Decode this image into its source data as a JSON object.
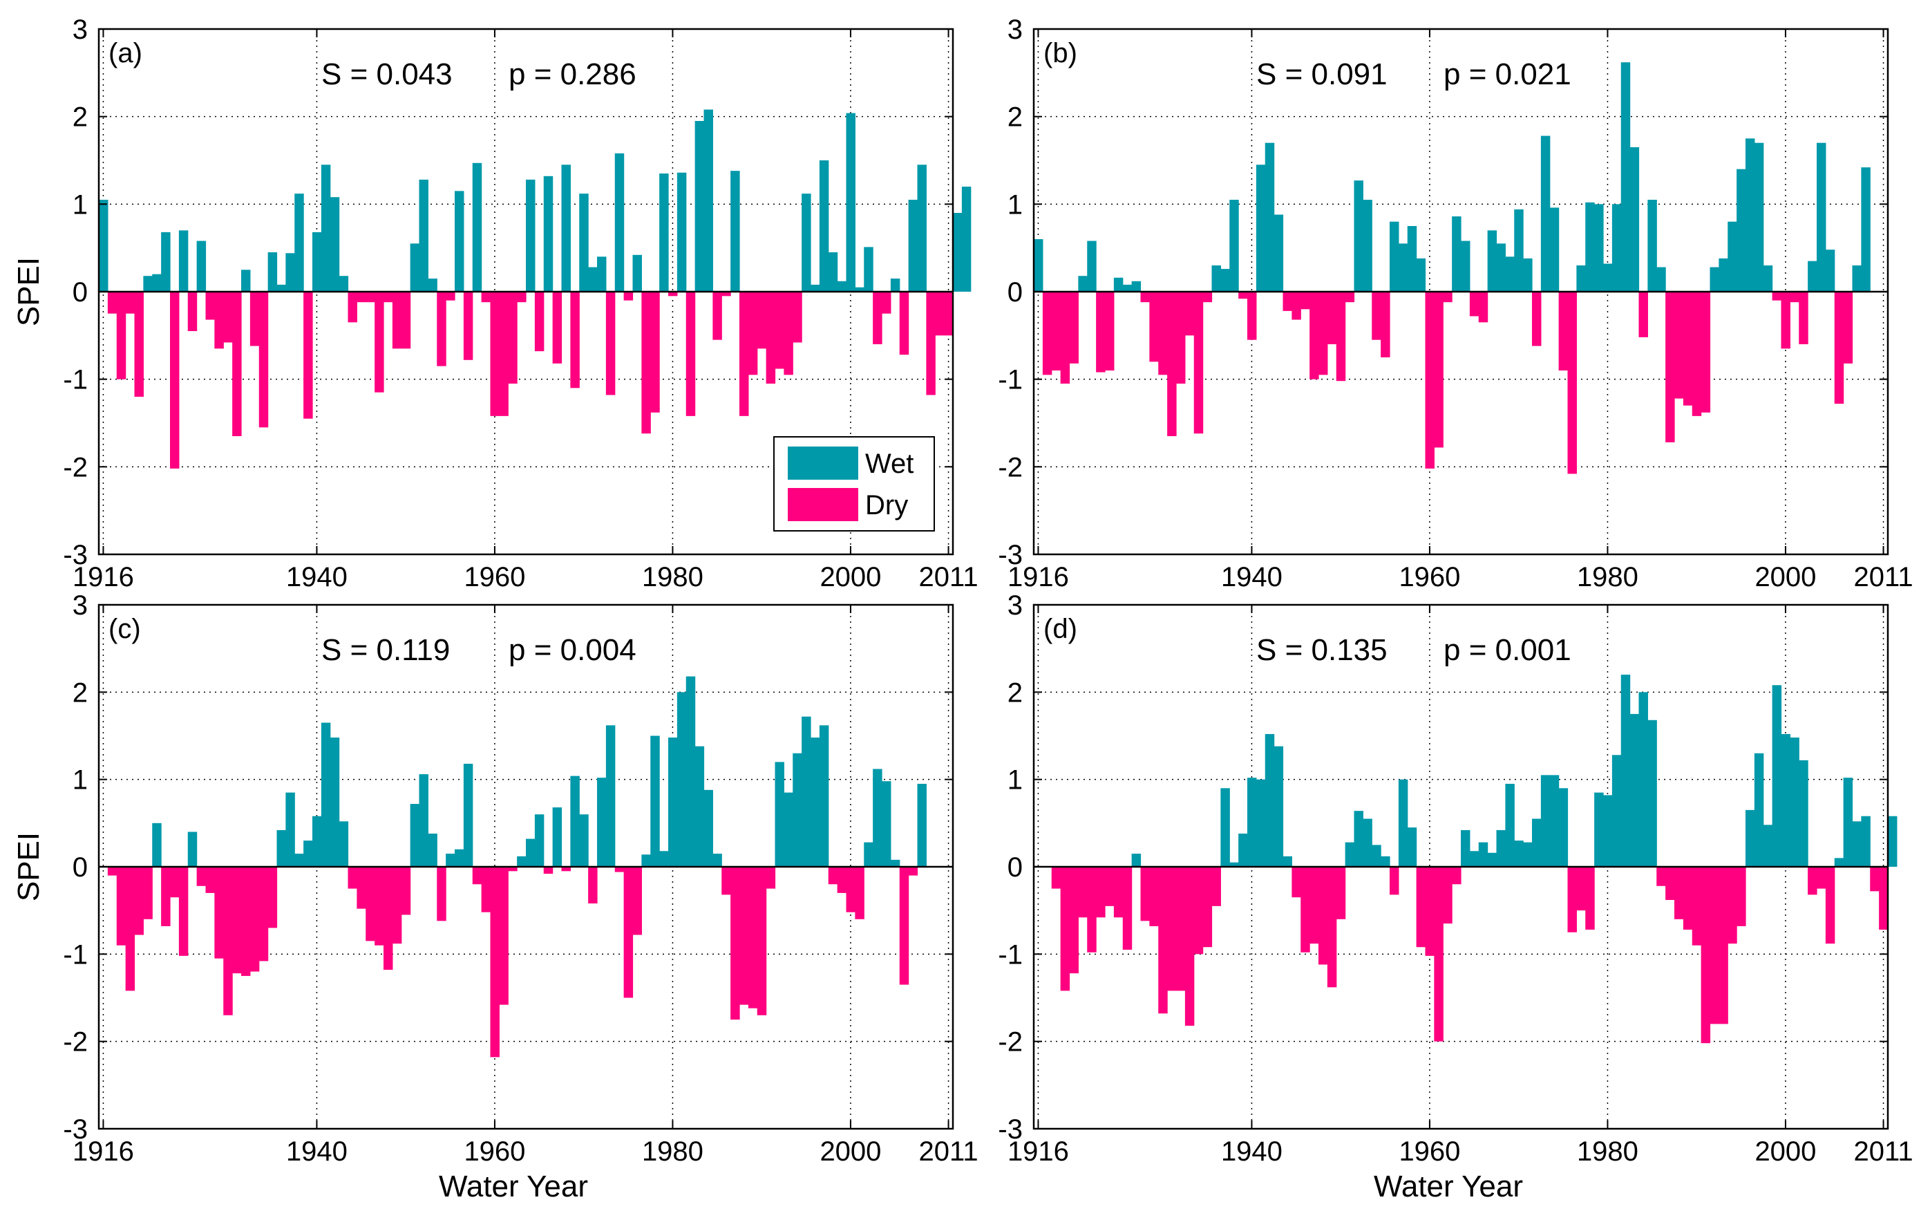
{
  "figure": {
    "colors": {
      "wet": "#0099aa",
      "dry": "#ff0080"
    },
    "legend": {
      "wet_label": "Wet",
      "dry_label": "Dry",
      "placement": "inside panel (a), lower right"
    }
  },
  "chart_data": [
    {
      "type": "bar",
      "panel": "(a)",
      "stat_s": "S = 0.043",
      "stat_p": "p = 0.286",
      "xlabel": "Water Year",
      "ylabel": "SPEI",
      "xlim": [
        1915.5,
        2011.5
      ],
      "ylim": [
        -3,
        3
      ],
      "xticks": [
        1916,
        1940,
        1960,
        1980,
        2000,
        2011
      ],
      "yticks": [
        -3,
        -2,
        -1,
        0,
        1,
        2,
        3
      ],
      "grid": "dotted",
      "x_start": 1916,
      "values": [
        1.05,
        -0.25,
        -1.0,
        -0.25,
        -1.2,
        0.18,
        0.2,
        0.68,
        -2.02,
        0.7,
        -0.45,
        0.58,
        -0.32,
        -0.65,
        -0.58,
        -1.65,
        0.25,
        -0.62,
        -1.55,
        0.45,
        0.08,
        0.44,
        1.12,
        -1.45,
        0.68,
        1.45,
        1.08,
        0.18,
        -0.35,
        -0.12,
        -0.12,
        -1.15,
        -0.12,
        -0.65,
        -0.65,
        0.55,
        1.28,
        0.15,
        -0.85,
        -0.1,
        1.15,
        -0.78,
        1.47,
        -0.12,
        -1.42,
        -1.42,
        -1.05,
        -0.12,
        1.28,
        -0.68,
        1.32,
        -0.82,
        1.45,
        -1.1,
        1.12,
        0.28,
        0.4,
        -1.18,
        1.58,
        -0.1,
        0.42,
        -1.62,
        -1.38,
        1.35,
        -0.05,
        1.36,
        -1.42,
        1.95,
        2.08,
        -0.55,
        -0.05,
        1.38,
        -1.42,
        -0.95,
        -0.65,
        -1.05,
        -0.88,
        -0.95,
        -0.58,
        1.12,
        0.08,
        1.5,
        0.45,
        0.12,
        2.04,
        0.05,
        0.51,
        -0.6,
        -0.25,
        0.15,
        -0.72,
        1.05,
        1.45,
        -1.18,
        -0.5,
        -0.5,
        0.9,
        1.2
      ]
    },
    {
      "type": "bar",
      "panel": "(b)",
      "stat_s": "S = 0.091",
      "stat_p": "p = 0.021",
      "xlabel": "Water Year",
      "ylabel": "",
      "xlim": [
        1915.5,
        2011.5
      ],
      "ylim": [
        -3,
        3
      ],
      "xticks": [
        1916,
        1940,
        1960,
        1980,
        2000,
        2011
      ],
      "yticks": [
        -3,
        -2,
        -1,
        0,
        1,
        2,
        3
      ],
      "grid": "dotted",
      "x_start": 1916,
      "values": [
        0.6,
        -0.95,
        -0.9,
        -1.05,
        -0.82,
        0.18,
        0.58,
        -0.92,
        -0.9,
        0.16,
        0.08,
        0.12,
        -0.12,
        -0.8,
        -0.95,
        -1.65,
        -1.05,
        -0.5,
        -1.62,
        -0.12,
        0.3,
        0.26,
        1.05,
        -0.08,
        -0.55,
        1.45,
        1.7,
        0.88,
        -0.22,
        -0.32,
        -0.2,
        -1.0,
        -0.95,
        -0.6,
        -1.02,
        -0.12,
        1.27,
        1.05,
        -0.55,
        -0.75,
        0.8,
        0.55,
        0.75,
        0.38,
        -2.02,
        -1.78,
        -0.12,
        0.86,
        0.58,
        -0.28,
        -0.35,
        0.7,
        0.55,
        0.4,
        0.94,
        0.38,
        -0.62,
        1.78,
        0.96,
        -0.9,
        -2.08,
        0.3,
        1.02,
        1.0,
        0.32,
        1.0,
        2.62,
        1.65,
        -0.52,
        1.05,
        0.28,
        -1.72,
        -1.22,
        -1.3,
        -1.42,
        -1.38,
        0.28,
        0.38,
        0.8,
        1.4,
        1.75,
        1.7,
        0.3,
        -0.1,
        -0.65,
        -0.12,
        -0.6,
        0.35,
        1.7,
        0.48,
        -1.28,
        -0.82,
        0.3,
        1.42
      ]
    },
    {
      "type": "bar",
      "panel": "(c)",
      "stat_s": "S = 0.119",
      "stat_p": "p = 0.004",
      "xlabel": "Water Year",
      "ylabel": "SPEI",
      "xlim": [
        1915.5,
        2011.5
      ],
      "ylim": [
        -3,
        3
      ],
      "xticks": [
        1916,
        1940,
        1960,
        1980,
        2000,
        2011
      ],
      "yticks": [
        -3,
        -2,
        -1,
        0,
        1,
        2,
        3
      ],
      "grid": "dotted",
      "x_start": 1916,
      "values": [
        0.0,
        -0.1,
        -0.9,
        -1.42,
        -0.78,
        -0.6,
        0.5,
        -0.68,
        -0.35,
        -1.02,
        0.4,
        -0.22,
        -0.3,
        -1.05,
        -1.7,
        -1.22,
        -1.25,
        -1.2,
        -1.08,
        -0.7,
        0.42,
        0.85,
        0.15,
        0.3,
        0.58,
        1.65,
        1.48,
        0.52,
        -0.25,
        -0.48,
        -0.85,
        -0.9,
        -1.18,
        -0.88,
        -0.55,
        0.72,
        1.06,
        0.38,
        -0.62,
        0.15,
        0.2,
        1.18,
        -0.2,
        -0.52,
        -2.18,
        -1.58,
        -0.05,
        0.12,
        0.32,
        0.6,
        -0.08,
        0.68,
        -0.05,
        1.04,
        0.6,
        -0.42,
        1.02,
        1.62,
        -0.06,
        -1.5,
        -0.78,
        0.14,
        1.5,
        0.18,
        1.48,
        2.0,
        2.18,
        1.38,
        0.88,
        0.15,
        -0.32,
        -1.75,
        -1.58,
        -1.62,
        -1.7,
        -0.25,
        1.2,
        0.85,
        1.3,
        1.72,
        1.48,
        1.62,
        -0.2,
        -0.3,
        -0.52,
        -0.6,
        0.28,
        1.12,
        0.98,
        0.08,
        -1.35,
        -0.1,
        0.95
      ]
    },
    {
      "type": "bar",
      "panel": "(d)",
      "stat_s": "S = 0.135",
      "stat_p": "p = 0.001",
      "xlabel": "Water Year",
      "ylabel": "",
      "xlim": [
        1915.5,
        2011.5
      ],
      "ylim": [
        -3,
        3
      ],
      "xticks": [
        1916,
        1940,
        1960,
        1980,
        2000,
        2011
      ],
      "yticks": [
        -3,
        -2,
        -1,
        0,
        1,
        2,
        3
      ],
      "grid": "dotted",
      "x_start": 1916,
      "values": [
        0.0,
        0.0,
        -0.25,
        -1.42,
        -1.22,
        -0.58,
        -0.98,
        -0.58,
        -0.45,
        -0.58,
        -0.95,
        0.15,
        -0.62,
        -0.68,
        -1.68,
        -1.42,
        -1.42,
        -1.82,
        -1.0,
        -0.92,
        -0.45,
        0.9,
        0.05,
        0.38,
        1.02,
        1.0,
        1.52,
        1.38,
        0.12,
        -0.35,
        -0.98,
        -0.88,
        -1.12,
        -1.38,
        -0.6,
        0.28,
        0.64,
        0.55,
        0.25,
        0.12,
        -0.32,
        1.0,
        0.45,
        -0.92,
        -1.02,
        -2.0,
        -0.65,
        -0.2,
        0.42,
        0.18,
        0.28,
        0.16,
        0.42,
        0.95,
        0.3,
        0.28,
        0.55,
        1.05,
        1.05,
        0.9,
        -0.75,
        -0.5,
        -0.72,
        0.85,
        0.82,
        1.28,
        2.2,
        1.75,
        2.0,
        1.68,
        -0.22,
        -0.38,
        -0.6,
        -0.72,
        -0.9,
        -2.02,
        -1.8,
        -1.8,
        -0.88,
        -0.68,
        0.65,
        1.3,
        0.48,
        2.08,
        1.52,
        1.48,
        1.22,
        -0.32,
        -0.25,
        -0.88,
        0.1,
        1.02,
        0.52,
        0.58,
        -0.28,
        -0.72,
        0.58
      ]
    }
  ]
}
